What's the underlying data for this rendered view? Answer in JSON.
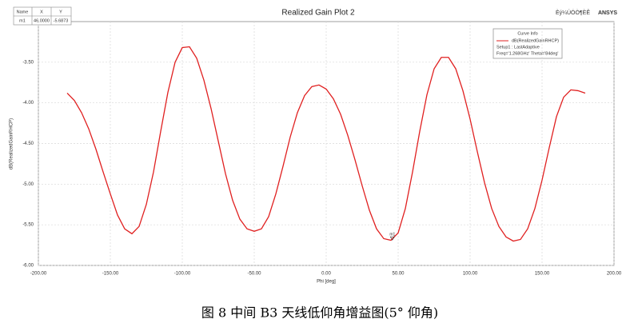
{
  "chart_data": {
    "type": "line",
    "title": "Realized Gain Plot 2",
    "brand": "ANSYS",
    "garbled_header": "Èý¼ÚÓÒ¶ÈÊ",
    "xlabel": "Phi [deg]",
    "ylabel": "dB(RealizedGainRHCP)",
    "xlim": [
      -200,
      200
    ],
    "ylim": [
      -6,
      -3
    ],
    "xticks": [
      {
        "value": -200,
        "label": "-200.00"
      },
      {
        "value": -150,
        "label": "-150.00"
      },
      {
        "value": -100,
        "label": "-100.00"
      },
      {
        "value": -50,
        "label": "-50.00"
      },
      {
        "value": 0,
        "label": "0.00"
      },
      {
        "value": 50,
        "label": "50.00"
      },
      {
        "value": 100,
        "label": "100.00"
      },
      {
        "value": 150,
        "label": "150.00"
      },
      {
        "value": 200,
        "label": "200.00"
      }
    ],
    "yticks": [
      {
        "value": -6,
        "label": "-6.00"
      },
      {
        "value": -5.5,
        "label": "-5.50"
      },
      {
        "value": -5,
        "label": "-5.00"
      },
      {
        "value": -4.5,
        "label": "-4.50"
      },
      {
        "value": -4,
        "label": "-4.00"
      },
      {
        "value": -3.5,
        "label": "-3.50"
      }
    ],
    "grid": true,
    "legend_title": "Curve Info",
    "legend_notes": [
      "Setup1 : LastAdaptive",
      "Freq='1.268GHz' Theta='84deg'"
    ],
    "x": [
      -180,
      -175,
      -170,
      -165,
      -160,
      -155,
      -150,
      -145,
      -140,
      -135,
      -130,
      -125,
      -120,
      -115,
      -110,
      -105,
      -100,
      -95,
      -90,
      -85,
      -80,
      -75,
      -70,
      -65,
      -60,
      -55,
      -50,
      -45,
      -40,
      -35,
      -30,
      -25,
      -20,
      -15,
      -10,
      -5,
      0,
      5,
      10,
      15,
      20,
      25,
      30,
      35,
      40,
      45,
      50,
      55,
      60,
      65,
      70,
      75,
      80,
      85,
      90,
      95,
      100,
      105,
      110,
      115,
      120,
      125,
      130,
      135,
      140,
      145,
      150,
      155,
      160,
      165,
      170,
      175,
      180
    ],
    "series": [
      {
        "name": "dB(RealizedGainRHCP)",
        "color": "#e02020",
        "values": [
          -3.88,
          -3.97,
          -4.12,
          -4.32,
          -4.57,
          -4.85,
          -5.12,
          -5.38,
          -5.55,
          -5.61,
          -5.52,
          -5.25,
          -4.85,
          -4.35,
          -3.87,
          -3.5,
          -3.32,
          -3.31,
          -3.45,
          -3.72,
          -4.07,
          -4.47,
          -4.87,
          -5.2,
          -5.43,
          -5.55,
          -5.58,
          -5.55,
          -5.4,
          -5.12,
          -4.78,
          -4.42,
          -4.12,
          -3.91,
          -3.8,
          -3.78,
          -3.83,
          -3.95,
          -4.14,
          -4.4,
          -4.7,
          -5.02,
          -5.32,
          -5.55,
          -5.67,
          -5.69,
          -5.6,
          -5.3,
          -4.85,
          -4.35,
          -3.9,
          -3.58,
          -3.44,
          -3.44,
          -3.58,
          -3.85,
          -4.2,
          -4.6,
          -4.98,
          -5.3,
          -5.52,
          -5.65,
          -5.7,
          -5.68,
          -5.55,
          -5.3,
          -4.95,
          -4.55,
          -4.17,
          -3.93,
          -3.84,
          -3.85,
          -3.88
        ]
      }
    ],
    "markers": [
      {
        "name": "m1",
        "x": 46,
        "y": -5.6873
      }
    ],
    "marker_table": {
      "columns": [
        "Name",
        "X",
        "Y"
      ],
      "rows": [
        [
          "m1",
          "46.0000",
          "-5.6873"
        ]
      ]
    },
    "caption": "图 8 中间 B3 天线低仰角增益图(5° 仰角)"
  }
}
